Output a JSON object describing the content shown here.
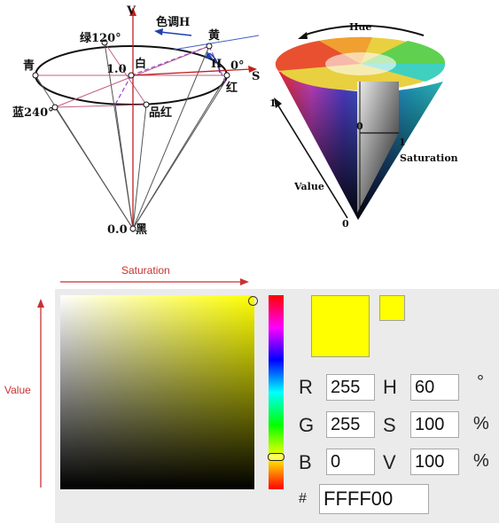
{
  "hsv_model": {
    "labels": {
      "v_axis": "V",
      "s_axis": "S",
      "hue_arrow": "色调H",
      "h_marker": "H",
      "green": "绿120°",
      "yellow": "黄",
      "cyan": "青",
      "white": "白",
      "value_top": "1.0",
      "red": "红",
      "zero_deg": "0°",
      "blue": "蓝240°",
      "magenta": "品红",
      "black_value": "0.0",
      "black": "黑"
    }
  },
  "color_cone": {
    "labels": {
      "hue": "Hue",
      "one_value": "1",
      "zero_center": "0",
      "one_saturation": "1",
      "saturation": "Saturation",
      "value": "Value",
      "zero_tip": "0"
    }
  },
  "picker": {
    "axis_saturation": "Saturation",
    "axis_value": "Value",
    "colors": {
      "current": "#ffff00",
      "accent": "#c83232"
    },
    "fields": {
      "r_label": "R",
      "r_value": "255",
      "g_label": "G",
      "g_value": "255",
      "b_label": "B",
      "b_value": "0",
      "h_label": "H",
      "h_value": "60",
      "s_label": "S",
      "s_value": "100",
      "v_label": "V",
      "v_value": "100",
      "h_unit": "°",
      "s_unit": "%",
      "v_unit": "%",
      "hex_label": "#",
      "hex_value": "FFFF00"
    }
  }
}
